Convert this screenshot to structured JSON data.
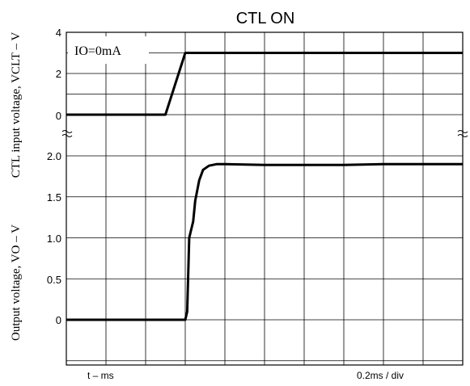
{
  "chart_data": {
    "type": "line",
    "title": "CTL ON",
    "annotation": "IO=0mA",
    "xlabel_left": "t – ms",
    "xlabel_right": "0.2ms / div",
    "upper_panel": {
      "ylabel": "CTL input voltage, VCLT – V",
      "ylim": [
        0,
        4
      ],
      "ticks": [
        "4",
        "2",
        "0"
      ],
      "series": [
        {
          "x": [
            0,
            0.2,
            0.4,
            0.5,
            0.6,
            0.8,
            1.0,
            1.2,
            1.4,
            1.6,
            1.8,
            2.0
          ],
          "y": [
            0,
            0,
            0,
            0,
            3,
            3,
            3,
            3,
            3,
            3,
            3,
            3
          ]
        }
      ]
    },
    "lower_panel": {
      "ylabel": "Output voltage, VO – V",
      "ylim": [
        -0.5,
        2.0
      ],
      "ticks": [
        "2.0",
        "1.5",
        "1.0",
        "0.5",
        "0"
      ],
      "series": [
        {
          "x": [
            0,
            0.2,
            0.4,
            0.6,
            0.61,
            0.62,
            0.64,
            0.65,
            0.67,
            0.69,
            0.72,
            0.76,
            0.8,
            1.0,
            1.2,
            1.4,
            1.6,
            1.8,
            2.0
          ],
          "y": [
            0,
            0,
            0,
            0,
            0.1,
            1.0,
            1.2,
            1.45,
            1.7,
            1.83,
            1.88,
            1.9,
            1.9,
            1.89,
            1.89,
            1.89,
            1.9,
            1.9,
            1.9
          ]
        }
      ]
    }
  }
}
